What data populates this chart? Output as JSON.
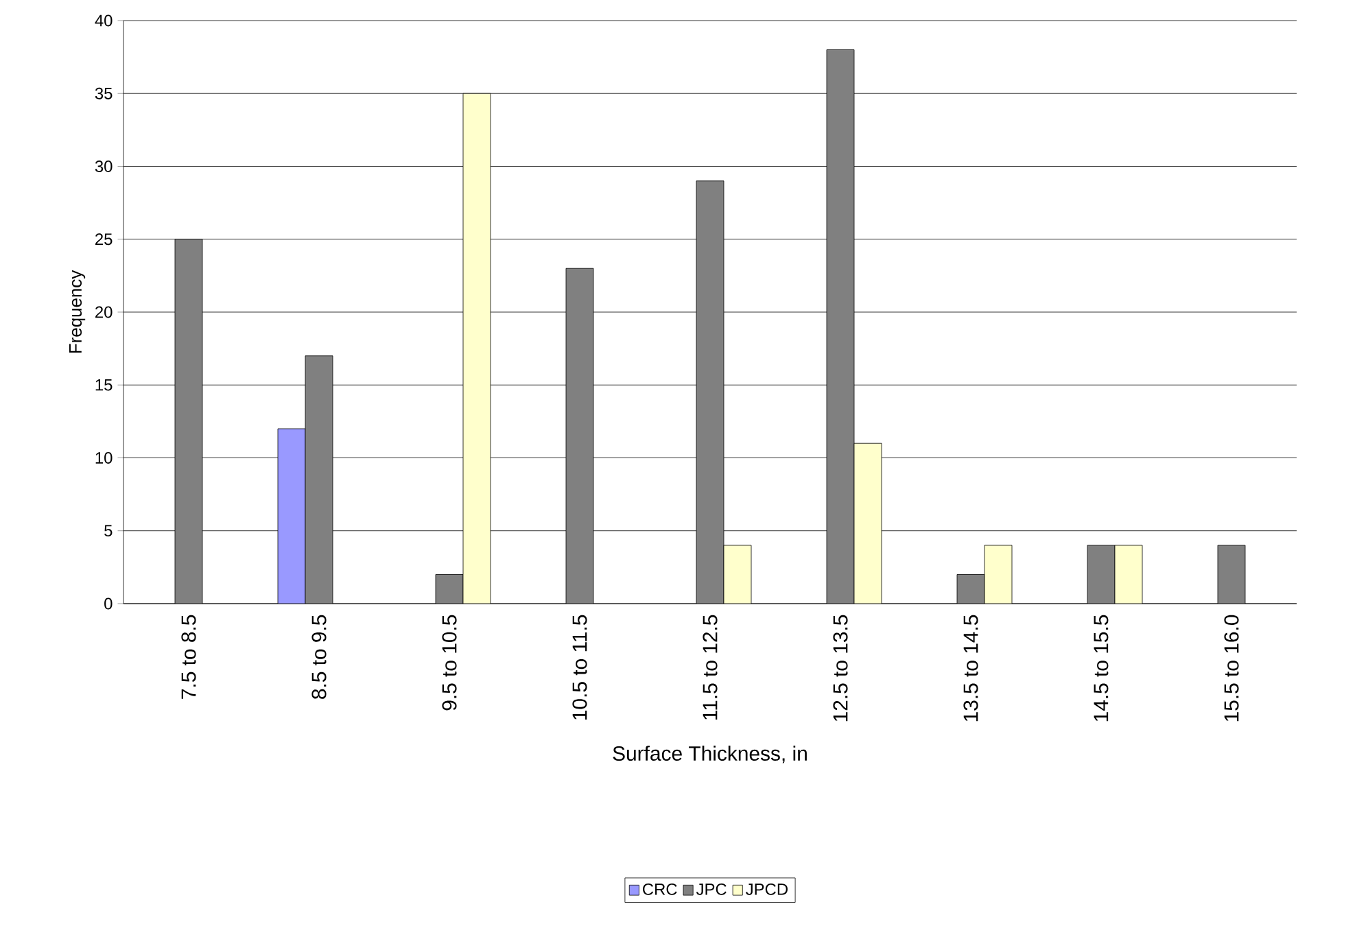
{
  "chart_data": {
    "type": "bar",
    "xlabel": "Surface Thickness, in",
    "ylabel": "Frequency",
    "categories": [
      "7.5 to 8.5",
      "8.5 to 9.5",
      "9.5 to 10.5",
      "10.5 to 11.5",
      "11.5 to 12.5",
      "12.5 to 13.5",
      "13.5 to 14.5",
      "14.5 to 15.5",
      "15.5 to 16.0"
    ],
    "series": [
      {
        "name": "CRC",
        "color": "#9999ff",
        "values": [
          null,
          12,
          null,
          null,
          null,
          null,
          null,
          null,
          null
        ]
      },
      {
        "name": "JPC",
        "color": "#808080",
        "values": [
          25,
          17,
          2,
          23,
          29,
          38,
          2,
          4,
          4
        ]
      },
      {
        "name": "JPCD",
        "color": "#ffffcc",
        "values": [
          null,
          null,
          35,
          null,
          4,
          11,
          4,
          4,
          null
        ]
      }
    ],
    "ylim": [
      0,
      40
    ],
    "yticks": [
      0,
      5,
      10,
      15,
      20,
      25,
      30,
      35,
      40
    ],
    "grid": "y",
    "legend": "bottom"
  }
}
